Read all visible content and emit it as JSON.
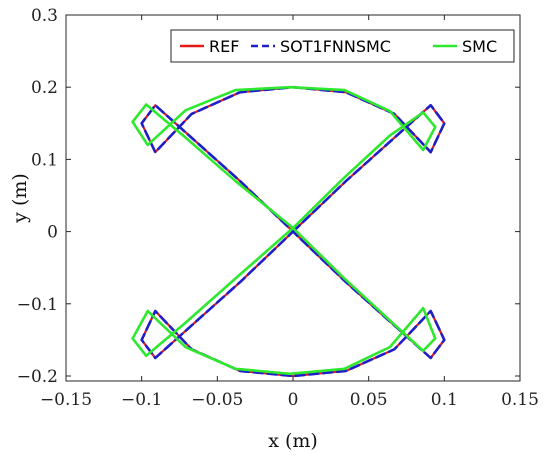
{
  "chart_data": {
    "type": "line",
    "xlabel": "x (m)",
    "ylabel": "y (m)",
    "xlim": [
      -0.15,
      0.15
    ],
    "ylim": [
      -0.21,
      0.3
    ],
    "xticks": [
      -0.15,
      -0.1,
      -0.05,
      0,
      0.05,
      0.1,
      0.15
    ],
    "xtick_labels": [
      "−0.15",
      "−0.1",
      "−0.05",
      "0",
      "0.05",
      "0.1",
      "0.15"
    ],
    "yticks": [
      -0.2,
      -0.1,
      0,
      0.1,
      0.2,
      0.3
    ],
    "ytick_labels": [
      "−0.2",
      "−0.1",
      "0",
      "0.1",
      "0.2",
      "0.3"
    ],
    "grid": false,
    "legend_position": "top-right",
    "legend_orientation": "horizontal",
    "series": [
      {
        "name": "REF",
        "color": "#e31a1c",
        "line_style": "solid",
        "x": [
          0,
          0.035,
          0.067,
          0.091,
          0.1,
          0.091,
          0.067,
          0.035,
          0,
          -0.035,
          -0.067,
          -0.091,
          -0.1,
          -0.091,
          -0.067,
          -0.035,
          0,
          0.035,
          0.067,
          0.091,
          0.1,
          0.091,
          0.067,
          0.035,
          0,
          -0.035,
          -0.067,
          -0.091,
          -0.1,
          -0.091,
          -0.067,
          -0.035,
          0
        ],
        "y": [
          0,
          0.07,
          0.13,
          0.175,
          0.15,
          0.11,
          0.163,
          0.193,
          0.2,
          0.193,
          0.163,
          0.11,
          0.15,
          0.175,
          0.13,
          0.07,
          0,
          -0.07,
          -0.13,
          -0.175,
          -0.15,
          -0.11,
          -0.163,
          -0.193,
          -0.2,
          -0.193,
          -0.163,
          -0.11,
          -0.15,
          -0.175,
          -0.13,
          -0.07,
          0
        ]
      },
      {
        "name": "SOT1FNNSMC",
        "color": "#1f1fc8",
        "line_style": "dashed",
        "x": [
          0,
          0.035,
          0.067,
          0.091,
          0.1,
          0.091,
          0.067,
          0.035,
          0,
          -0.035,
          -0.067,
          -0.091,
          -0.1,
          -0.091,
          -0.067,
          -0.035,
          0,
          0.035,
          0.067,
          0.091,
          0.1,
          0.091,
          0.067,
          0.035,
          0,
          -0.035,
          -0.067,
          -0.091,
          -0.1,
          -0.091,
          -0.067,
          -0.035,
          0
        ],
        "y": [
          0,
          0.07,
          0.13,
          0.175,
          0.15,
          0.11,
          0.163,
          0.193,
          0.2,
          0.193,
          0.163,
          0.11,
          0.15,
          0.175,
          0.13,
          0.07,
          0,
          -0.07,
          -0.13,
          -0.175,
          -0.15,
          -0.11,
          -0.163,
          -0.193,
          -0.2,
          -0.193,
          -0.163,
          -0.11,
          -0.15,
          -0.175,
          -0.13,
          -0.07,
          0
        ]
      },
      {
        "name": "SMC",
        "color": "#2ee82e",
        "line_style": "solid",
        "x": [
          0,
          0.034,
          0.064,
          0.086,
          0.094,
          0.086,
          0.064,
          0.034,
          -0.002,
          -0.038,
          -0.071,
          -0.096,
          -0.106,
          -0.097,
          -0.072,
          -0.038,
          0,
          0.034,
          0.064,
          0.086,
          0.094,
          0.086,
          0.064,
          0.034,
          -0.002,
          -0.038,
          -0.071,
          -0.096,
          -0.106,
          -0.097,
          -0.072,
          -0.038,
          0
        ],
        "y": [
          0.005,
          0.075,
          0.133,
          0.165,
          0.145,
          0.113,
          0.167,
          0.196,
          0.2,
          0.196,
          0.168,
          0.12,
          0.152,
          0.176,
          0.132,
          0.07,
          0.005,
          -0.065,
          -0.123,
          -0.165,
          -0.148,
          -0.106,
          -0.16,
          -0.19,
          -0.197,
          -0.19,
          -0.16,
          -0.11,
          -0.148,
          -0.172,
          -0.128,
          -0.065,
          0.005
        ]
      }
    ]
  }
}
